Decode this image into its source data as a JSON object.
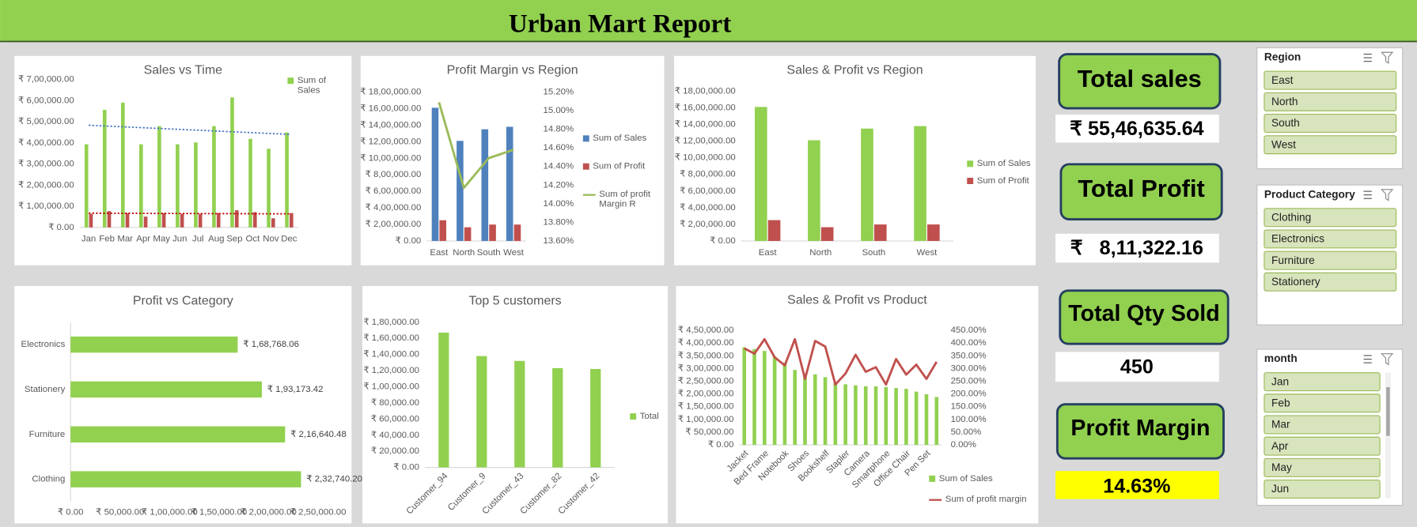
{
  "title": "Urban Mart Report",
  "chart_data": [
    {
      "type": "bar",
      "title": "Sales vs Time",
      "categories": [
        "Jan",
        "Feb",
        "Mar",
        "Apr",
        "May",
        "Jun",
        "Jul",
        "Aug",
        "Sep",
        "Oct",
        "Nov",
        "Dec"
      ],
      "series": [
        {
          "name": "Sum of Sales",
          "color": "#92d050",
          "values": [
            393000,
            556000,
            590000,
            393000,
            479000,
            393000,
            402000,
            479000,
            615000,
            419000,
            372000,
            449000
          ]
        },
        {
          "color": "#c0504d",
          "values": [
            64000,
            77000,
            68000,
            51000,
            68000,
            64000,
            64000,
            68000,
            81000,
            72000,
            43000,
            68000
          ]
        }
      ],
      "ylim": [
        0,
        700000
      ],
      "yticks": [
        {
          "value": 0,
          "label": "₹ 0.00"
        },
        {
          "value": 100000,
          "label": "₹ 1,00,000.00"
        },
        {
          "value": 200000,
          "label": "₹ 2,00,000.00"
        },
        {
          "value": 300000,
          "label": "₹ 3,00,000.00"
        },
        {
          "value": 400000,
          "label": "₹ 4,00,000.00"
        },
        {
          "value": 500000,
          "label": "₹ 5,00,000.00"
        },
        {
          "value": 600000,
          "label": "₹ 6,00,000.00"
        },
        {
          "value": 700000,
          "label": "₹ 7,00,000.00"
        }
      ],
      "trendline": true,
      "trendline_colors": [
        "#4472c4",
        "#c00000"
      ],
      "legend": "top-right"
    },
    {
      "type": "combo",
      "title": "Profit Margin vs Region",
      "categories": [
        "East",
        "North",
        "South",
        "West"
      ],
      "series": [
        {
          "name": "Sum of Sales",
          "color": "#4f81bd",
          "values": [
            1610000,
            1210000,
            1350000,
            1380000
          ]
        },
        {
          "name": "Sum of Profit",
          "color": "#c0504d",
          "values": [
            250000,
            165000,
            198000,
            198000
          ]
        },
        {
          "name": "Sum of profit Margin R",
          "color": "#9bbb59",
          "axis": "y2",
          "values": [
            15.09,
            14.17,
            14.49,
            14.58
          ]
        }
      ],
      "ylim": [
        0,
        1800000
      ],
      "yticks": [
        {
          "value": 0,
          "label": "₹ 0.00"
        },
        {
          "value": 200000,
          "label": "₹ 2,00,000.00"
        },
        {
          "value": 400000,
          "label": "₹ 4,00,000.00"
        },
        {
          "value": 600000,
          "label": "₹ 6,00,000.00"
        },
        {
          "value": 800000,
          "label": "₹ 8,00,000.00"
        },
        {
          "value": 1000000,
          "label": "₹ 10,00,000.00"
        },
        {
          "value": 1200000,
          "label": "₹ 12,00,000.00"
        },
        {
          "value": 1400000,
          "label": "₹ 14,00,000.00"
        },
        {
          "value": 1600000,
          "label": "₹ 16,00,000.00"
        },
        {
          "value": 1800000,
          "label": "₹ 18,00,000.00"
        }
      ],
      "y2lim": [
        13.6,
        15.2
      ],
      "y2ticks": [
        {
          "value": 13.6,
          "label": "13.60%"
        },
        {
          "value": 13.8,
          "label": "13.80%"
        },
        {
          "value": 14.0,
          "label": "14.00%"
        },
        {
          "value": 14.2,
          "label": "14.20%"
        },
        {
          "value": 14.4,
          "label": "14.40%"
        },
        {
          "value": 14.6,
          "label": "14.60%"
        },
        {
          "value": 14.8,
          "label": "14.80%"
        },
        {
          "value": 15.0,
          "label": "15.00%"
        },
        {
          "value": 15.2,
          "label": "15.20%"
        }
      ],
      "legend": "right"
    },
    {
      "type": "bar",
      "title": "Sales & Profit vs Region",
      "categories": [
        "East",
        "North",
        "South",
        "West"
      ],
      "series": [
        {
          "name": "Sum of Sales",
          "color": "#92d050",
          "values": [
            1610000,
            1210000,
            1350000,
            1380000
          ]
        },
        {
          "name": "Sum of Profit",
          "color": "#c0504d",
          "values": [
            250000,
            165000,
            198000,
            198000
          ]
        }
      ],
      "ylim": [
        0,
        1800000
      ],
      "yticks": [
        {
          "value": 0,
          "label": "₹ 0.00"
        },
        {
          "value": 200000,
          "label": "₹ 2,00,000.00"
        },
        {
          "value": 400000,
          "label": "₹ 4,00,000.00"
        },
        {
          "value": 600000,
          "label": "₹ 6,00,000.00"
        },
        {
          "value": 800000,
          "label": "₹ 8,00,000.00"
        },
        {
          "value": 1000000,
          "label": "₹ 10,00,000.00"
        },
        {
          "value": 1200000,
          "label": "₹ 12,00,000.00"
        },
        {
          "value": 1400000,
          "label": "₹ 14,00,000.00"
        },
        {
          "value": 1600000,
          "label": "₹ 16,00,000.00"
        },
        {
          "value": 1800000,
          "label": "₹ 18,00,000.00"
        }
      ],
      "legend": "right"
    },
    {
      "type": "hbar",
      "title": "Profit vs Category",
      "categories": [
        "Electronics",
        "Stationery",
        "Furniture",
        "Clothing"
      ],
      "values": [
        168768.06,
        193173.42,
        216640.48,
        232740.2
      ],
      "value_labels": [
        "₹ 1,68,768.06",
        "₹ 1,93,173.42",
        "₹ 2,16,640.48",
        "₹ 2,32,740.20"
      ],
      "color": "#92d050",
      "xlim": [
        0,
        250000
      ],
      "xticks": [
        {
          "value": 0,
          "label": "₹ 0.00"
        },
        {
          "value": 50000,
          "label": "₹ 50,000.00"
        },
        {
          "value": 100000,
          "label": "₹ 1,00,000.00"
        },
        {
          "value": 150000,
          "label": "₹ 1,50,000.00"
        },
        {
          "value": 200000,
          "label": "₹ 2,00,000.00"
        },
        {
          "value": 250000,
          "label": "₹ 2,50,000.00"
        }
      ]
    },
    {
      "type": "bar",
      "title": "Top 5 customers",
      "categories": [
        "Customer_94",
        "Customer_9",
        "Customer_43",
        "Customer_82",
        "Customer_42"
      ],
      "series": [
        {
          "name": "Total",
          "color": "#92d050",
          "values": [
            167000,
            138000,
            132000,
            123000,
            122000
          ]
        }
      ],
      "ylim": [
        0,
        180000
      ],
      "yticks": [
        {
          "value": 0,
          "label": "₹ 0.00"
        },
        {
          "value": 20000,
          "label": "₹ 20,000.00"
        },
        {
          "value": 40000,
          "label": "₹ 40,000.00"
        },
        {
          "value": 60000,
          "label": "₹ 60,000.00"
        },
        {
          "value": 80000,
          "label": "₹ 80,000.00"
        },
        {
          "value": 100000,
          "label": "₹ 1,00,000.00"
        },
        {
          "value": 120000,
          "label": "₹ 1,20,000.00"
        },
        {
          "value": 140000,
          "label": "₹ 1,40,000.00"
        },
        {
          "value": 160000,
          "label": "₹ 1,60,000.00"
        },
        {
          "value": 180000,
          "label": "₹ 1,80,000.00"
        }
      ],
      "legend": "right"
    },
    {
      "type": "combo",
      "title": "Sales & Profit vs Product",
      "categories": [
        "Jacket",
        null,
        "Bed Frame",
        null,
        "Notebook",
        null,
        "Shoes",
        null,
        "Bookshelf",
        null,
        "Stapler",
        null,
        "Camera",
        null,
        "Smartphone",
        null,
        "Office Chair",
        null,
        "Pen Set",
        null
      ],
      "series": [
        {
          "name": "Sum of Sales",
          "color": "#92d050",
          "values": [
            383000,
            376000,
            369000,
            348000,
            323000,
            294000,
            280000,
            277000,
            266000,
            248000,
            238000,
            234000,
            230000,
            230000,
            227000,
            223000,
            220000,
            209000,
            199000,
            188000
          ]
        },
        {
          "name": "Sum of profit margin",
          "color": "#c0504d",
          "axis": "y2",
          "values": [
            379,
            358,
            415,
            344,
            312,
            415,
            259,
            408,
            386,
            237,
            280,
            354,
            287,
            305,
            237,
            337,
            276,
            315,
            259,
            326
          ]
        }
      ],
      "ylim": [
        0,
        450000
      ],
      "yticks": [
        {
          "value": 0,
          "label": "₹ 0.00"
        },
        {
          "value": 50000,
          "label": "₹ 50,000.00"
        },
        {
          "value": 100000,
          "label": "₹ 1,00,000.00"
        },
        {
          "value": 150000,
          "label": "₹ 1,50,000.00"
        },
        {
          "value": 200000,
          "label": "₹ 2,00,000.00"
        },
        {
          "value": 250000,
          "label": "₹ 2,50,000.00"
        },
        {
          "value": 300000,
          "label": "₹ 3,00,000.00"
        },
        {
          "value": 350000,
          "label": "₹ 3,50,000.00"
        },
        {
          "value": 400000,
          "label": "₹ 4,00,000.00"
        },
        {
          "value": 450000,
          "label": "₹ 4,50,000.00"
        }
      ],
      "y2lim": [
        0,
        450
      ],
      "y2ticks": [
        {
          "value": 0,
          "label": "0.00%"
        },
        {
          "value": 50,
          "label": "50.00%"
        },
        {
          "value": 100,
          "label": "100.00%"
        },
        {
          "value": 150,
          "label": "150.00%"
        },
        {
          "value": 200,
          "label": "200.00%"
        },
        {
          "value": 250,
          "label": "250.00%"
        },
        {
          "value": 300,
          "label": "300.00%"
        },
        {
          "value": 350,
          "label": "350.00%"
        },
        {
          "value": 400,
          "label": "400.00%"
        },
        {
          "value": 450,
          "label": "450.00%"
        }
      ],
      "legend": "bottom-right"
    }
  ],
  "kpis": [
    {
      "label": "Total sales",
      "value": "₹ 55,46,635.64"
    },
    {
      "label": "Total Profit",
      "value": "₹   8,11,322.16"
    },
    {
      "label": "Total Qty Sold",
      "value": "450"
    },
    {
      "label": "Profit Margin",
      "value": "14.63%"
    }
  ],
  "slicers": [
    {
      "title": "Region",
      "items": [
        "East",
        "North",
        "South",
        "West"
      ]
    },
    {
      "title": "Product Category",
      "items": [
        "Clothing",
        "Electronics",
        "Furniture",
        "Stationery"
      ]
    },
    {
      "title": "month",
      "items": [
        "Jan",
        "Feb",
        "Mar",
        "Apr",
        "May",
        "Jun"
      ]
    }
  ]
}
